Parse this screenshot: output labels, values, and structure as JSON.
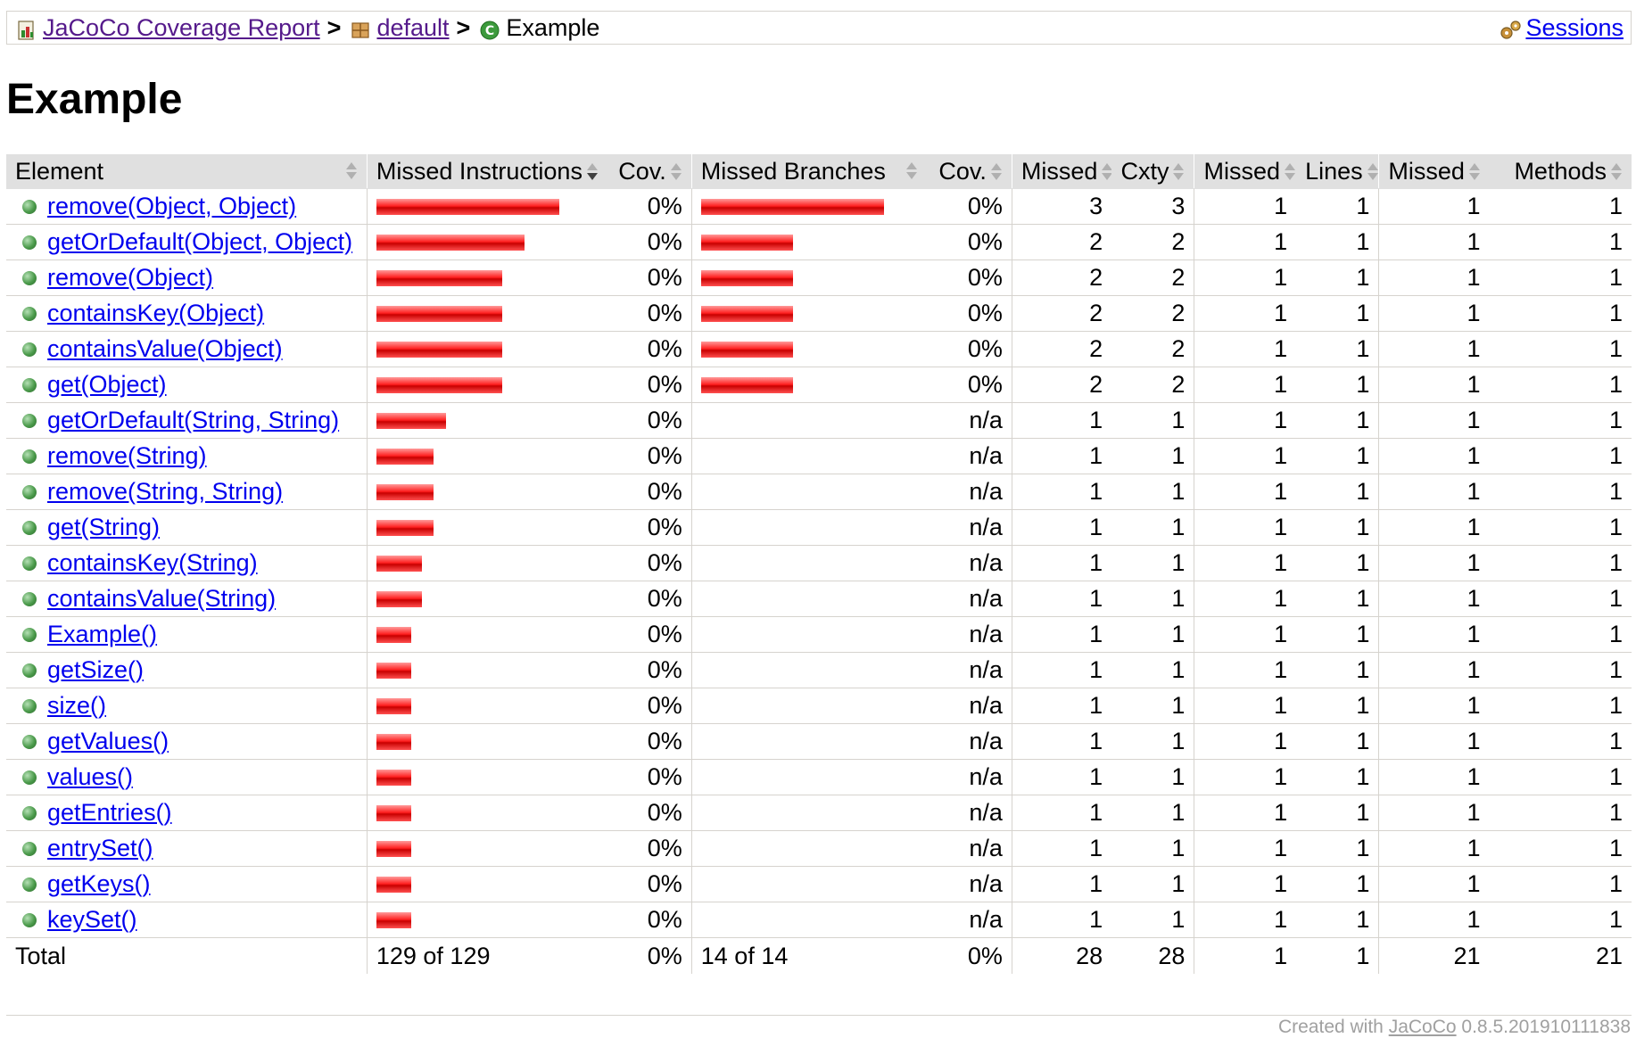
{
  "breadcrumb": {
    "root_link": "JaCoCo Coverage Report",
    "package_link": "default",
    "current": "Example",
    "separator": ">",
    "sessions_link": "Sessions"
  },
  "page_title": "Example",
  "table": {
    "headers": {
      "element": "Element",
      "missed_instructions": "Missed Instructions",
      "instr_cov": "Cov.",
      "missed_branches": "Missed Branches",
      "branch_cov": "Cov.",
      "cxty_missed": "Missed",
      "cxty": "Cxty",
      "lines_missed": "Missed",
      "lines": "Lines",
      "methods_missed": "Missed",
      "methods": "Methods"
    },
    "rows": [
      {
        "name": "remove(Object, Object)",
        "instr_fraction": 1.0,
        "instr_cov": "0%",
        "branch_fraction": 1.0,
        "branch_cov": "0%",
        "cx_missed": "3",
        "cxty": "3",
        "l_missed": "1",
        "lines": "1",
        "m_missed": "1",
        "methods": "1"
      },
      {
        "name": "getOrDefault(Object, Object)",
        "instr_fraction": 0.81,
        "instr_cov": "0%",
        "branch_fraction": 0.5,
        "branch_cov": "0%",
        "cx_missed": "2",
        "cxty": "2",
        "l_missed": "1",
        "lines": "1",
        "m_missed": "1",
        "methods": "1"
      },
      {
        "name": "remove(Object)",
        "instr_fraction": 0.69,
        "instr_cov": "0%",
        "branch_fraction": 0.5,
        "branch_cov": "0%",
        "cx_missed": "2",
        "cxty": "2",
        "l_missed": "1",
        "lines": "1",
        "m_missed": "1",
        "methods": "1"
      },
      {
        "name": "containsKey(Object)",
        "instr_fraction": 0.69,
        "instr_cov": "0%",
        "branch_fraction": 0.5,
        "branch_cov": "0%",
        "cx_missed": "2",
        "cxty": "2",
        "l_missed": "1",
        "lines": "1",
        "m_missed": "1",
        "methods": "1"
      },
      {
        "name": "containsValue(Object)",
        "instr_fraction": 0.69,
        "instr_cov": "0%",
        "branch_fraction": 0.5,
        "branch_cov": "0%",
        "cx_missed": "2",
        "cxty": "2",
        "l_missed": "1",
        "lines": "1",
        "m_missed": "1",
        "methods": "1"
      },
      {
        "name": "get(Object)",
        "instr_fraction": 0.69,
        "instr_cov": "0%",
        "branch_fraction": 0.5,
        "branch_cov": "0%",
        "cx_missed": "2",
        "cxty": "2",
        "l_missed": "1",
        "lines": "1",
        "m_missed": "1",
        "methods": "1"
      },
      {
        "name": "getOrDefault(String, String)",
        "instr_fraction": 0.38,
        "instr_cov": "0%",
        "branch_fraction": 0,
        "branch_cov": "n/a",
        "cx_missed": "1",
        "cxty": "1",
        "l_missed": "1",
        "lines": "1",
        "m_missed": "1",
        "methods": "1"
      },
      {
        "name": "remove(String)",
        "instr_fraction": 0.31,
        "instr_cov": "0%",
        "branch_fraction": 0,
        "branch_cov": "n/a",
        "cx_missed": "1",
        "cxty": "1",
        "l_missed": "1",
        "lines": "1",
        "m_missed": "1",
        "methods": "1"
      },
      {
        "name": "remove(String, String)",
        "instr_fraction": 0.31,
        "instr_cov": "0%",
        "branch_fraction": 0,
        "branch_cov": "n/a",
        "cx_missed": "1",
        "cxty": "1",
        "l_missed": "1",
        "lines": "1",
        "m_missed": "1",
        "methods": "1"
      },
      {
        "name": "get(String)",
        "instr_fraction": 0.31,
        "instr_cov": "0%",
        "branch_fraction": 0,
        "branch_cov": "n/a",
        "cx_missed": "1",
        "cxty": "1",
        "l_missed": "1",
        "lines": "1",
        "m_missed": "1",
        "methods": "1"
      },
      {
        "name": "containsKey(String)",
        "instr_fraction": 0.25,
        "instr_cov": "0%",
        "branch_fraction": 0,
        "branch_cov": "n/a",
        "cx_missed": "1",
        "cxty": "1",
        "l_missed": "1",
        "lines": "1",
        "m_missed": "1",
        "methods": "1"
      },
      {
        "name": "containsValue(String)",
        "instr_fraction": 0.25,
        "instr_cov": "0%",
        "branch_fraction": 0,
        "branch_cov": "n/a",
        "cx_missed": "1",
        "cxty": "1",
        "l_missed": "1",
        "lines": "1",
        "m_missed": "1",
        "methods": "1"
      },
      {
        "name": "Example()",
        "instr_fraction": 0.19,
        "instr_cov": "0%",
        "branch_fraction": 0,
        "branch_cov": "n/a",
        "cx_missed": "1",
        "cxty": "1",
        "l_missed": "1",
        "lines": "1",
        "m_missed": "1",
        "methods": "1"
      },
      {
        "name": "getSize()",
        "instr_fraction": 0.19,
        "instr_cov": "0%",
        "branch_fraction": 0,
        "branch_cov": "n/a",
        "cx_missed": "1",
        "cxty": "1",
        "l_missed": "1",
        "lines": "1",
        "m_missed": "1",
        "methods": "1"
      },
      {
        "name": "size()",
        "instr_fraction": 0.19,
        "instr_cov": "0%",
        "branch_fraction": 0,
        "branch_cov": "n/a",
        "cx_missed": "1",
        "cxty": "1",
        "l_missed": "1",
        "lines": "1",
        "m_missed": "1",
        "methods": "1"
      },
      {
        "name": "getValues()",
        "instr_fraction": 0.19,
        "instr_cov": "0%",
        "branch_fraction": 0,
        "branch_cov": "n/a",
        "cx_missed": "1",
        "cxty": "1",
        "l_missed": "1",
        "lines": "1",
        "m_missed": "1",
        "methods": "1"
      },
      {
        "name": "values()",
        "instr_fraction": 0.19,
        "instr_cov": "0%",
        "branch_fraction": 0,
        "branch_cov": "n/a",
        "cx_missed": "1",
        "cxty": "1",
        "l_missed": "1",
        "lines": "1",
        "m_missed": "1",
        "methods": "1"
      },
      {
        "name": "getEntries()",
        "instr_fraction": 0.19,
        "instr_cov": "0%",
        "branch_fraction": 0,
        "branch_cov": "n/a",
        "cx_missed": "1",
        "cxty": "1",
        "l_missed": "1",
        "lines": "1",
        "m_missed": "1",
        "methods": "1"
      },
      {
        "name": "entrySet()",
        "instr_fraction": 0.19,
        "instr_cov": "0%",
        "branch_fraction": 0,
        "branch_cov": "n/a",
        "cx_missed": "1",
        "cxty": "1",
        "l_missed": "1",
        "lines": "1",
        "m_missed": "1",
        "methods": "1"
      },
      {
        "name": "getKeys()",
        "instr_fraction": 0.19,
        "instr_cov": "0%",
        "branch_fraction": 0,
        "branch_cov": "n/a",
        "cx_missed": "1",
        "cxty": "1",
        "l_missed": "1",
        "lines": "1",
        "m_missed": "1",
        "methods": "1"
      },
      {
        "name": "keySet()",
        "instr_fraction": 0.19,
        "instr_cov": "0%",
        "branch_fraction": 0,
        "branch_cov": "n/a",
        "cx_missed": "1",
        "cxty": "1",
        "l_missed": "1",
        "lines": "1",
        "m_missed": "1",
        "methods": "1"
      }
    ],
    "total": {
      "label": "Total",
      "instructions": "129 of 129",
      "instr_cov": "0%",
      "branches": "14 of 14",
      "branch_cov": "0%",
      "cx_missed": "28",
      "cxty": "28",
      "l_missed": "1",
      "lines": "1",
      "m_missed": "21",
      "methods": "21"
    }
  },
  "footer": {
    "prefix": "Created with",
    "link": "JaCoCo",
    "version": "0.8.5.201910111838"
  },
  "colors": {
    "bar_red": "#ff2020",
    "header_bg": "#e0e0e0",
    "link": "#0000ee",
    "visited_link": "#551a8b"
  }
}
